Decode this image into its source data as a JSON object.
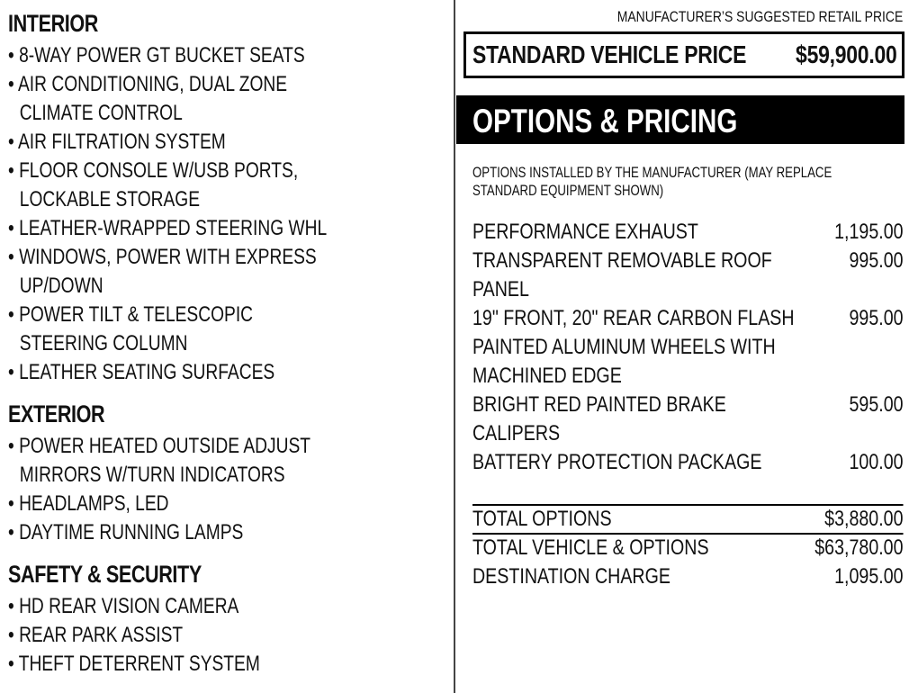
{
  "left": {
    "sections": [
      {
        "title": "INTERIOR",
        "items": [
          [
            "8-WAY POWER GT BUCKET SEATS"
          ],
          [
            "AIR CONDITIONING, DUAL ZONE",
            "CLIMATE CONTROL"
          ],
          [
            "AIR FILTRATION SYSTEM"
          ],
          [
            "FLOOR CONSOLE W/USB PORTS,",
            "LOCKABLE STORAGE"
          ],
          [
            "LEATHER-WRAPPED STEERING WHL"
          ],
          [
            "WINDOWS, POWER WITH EXPRESS",
            "UP/DOWN"
          ],
          [
            "POWER TILT & TELESCOPIC",
            "STEERING COLUMN"
          ],
          [
            "LEATHER SEATING SURFACES"
          ]
        ]
      },
      {
        "title": "EXTERIOR",
        "items": [
          [
            "POWER HEATED OUTSIDE ADJUST",
            "MIRRORS W/TURN INDICATORS"
          ],
          [
            "HEADLAMPS, LED"
          ],
          [
            "DAYTIME RUNNING LAMPS"
          ]
        ]
      },
      {
        "title": "SAFETY & SECURITY",
        "items": [
          [
            "HD REAR VISION CAMERA"
          ],
          [
            "REAR PARK ASSIST"
          ],
          [
            "THEFT DETERRENT SYSTEM"
          ]
        ]
      }
    ]
  },
  "right": {
    "msrp_label": "MANUFACTURER’S SUGGESTED RETAIL PRICE",
    "standard_label": "STANDARD VEHICLE PRICE",
    "standard_price": "$59,900.00",
    "banner": "OPTIONS & PRICING",
    "note": "OPTIONS INSTALLED BY THE MANUFACTURER (MAY REPLACE STANDARD EQUIPMENT SHOWN)",
    "options": [
      {
        "label": "PERFORMANCE EXHAUST",
        "price": "1,195.00"
      },
      {
        "label": "TRANSPARENT REMOVABLE ROOF PANEL",
        "price": "995.00"
      },
      {
        "label": "19\" FRONT, 20\" REAR CARBON FLASH PAINTED ALUMINUM WHEELS WITH MACHINED EDGE",
        "price": "995.00"
      },
      {
        "label": "BRIGHT RED PAINTED BRAKE CALIPERS",
        "price": "595.00"
      },
      {
        "label": "BATTERY PROTECTION PACKAGE",
        "price": "100.00"
      }
    ],
    "totals": [
      {
        "label": "TOTAL OPTIONS",
        "price": "$3,880.00"
      },
      {
        "label": "TOTAL VEHICLE & OPTIONS",
        "price": "$63,780.00"
      },
      {
        "label": "DESTINATION CHARGE",
        "price": "1,095.00"
      }
    ]
  }
}
